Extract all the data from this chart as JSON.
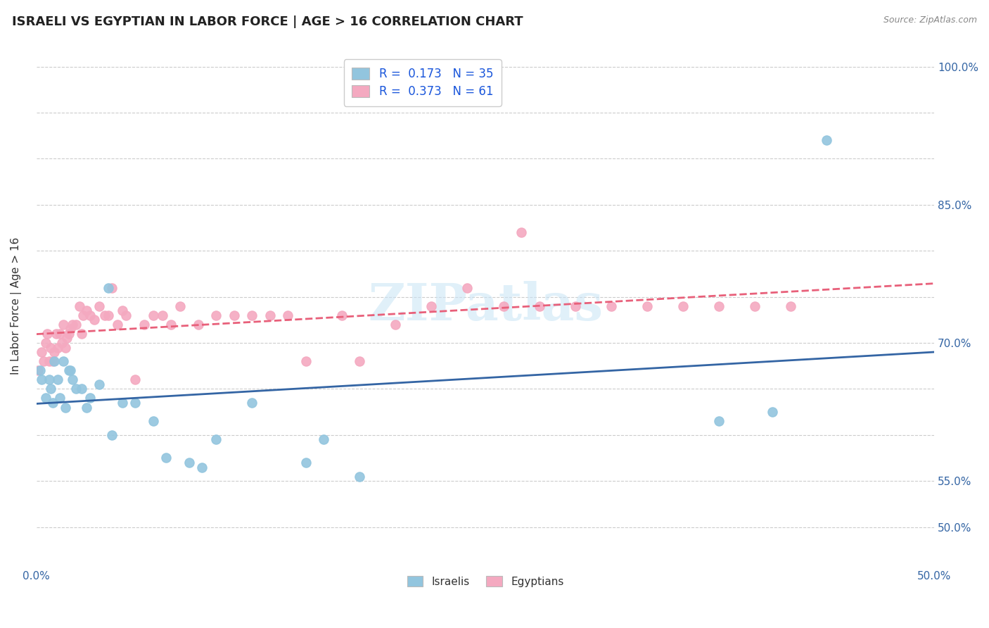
{
  "title": "ISRAELI VS EGYPTIAN IN LABOR FORCE | AGE > 16 CORRELATION CHART",
  "source": "Source: ZipAtlas.com",
  "ylabel": "In Labor Force | Age > 16",
  "xlim": [
    0.0,
    0.5
  ],
  "ylim": [
    0.46,
    1.02
  ],
  "yticks": [
    0.5,
    0.55,
    0.6,
    0.65,
    0.7,
    0.75,
    0.8,
    0.85,
    0.9,
    0.95,
    1.0
  ],
  "xticks": [
    0.0,
    0.05,
    0.1,
    0.15,
    0.2,
    0.25,
    0.3,
    0.35,
    0.4,
    0.45,
    0.5
  ],
  "israeli_color": "#92c5de",
  "egyptian_color": "#f4a9c0",
  "israeli_line_color": "#3465a4",
  "egyptian_line_color": "#e8607a",
  "legend_color": "#1a56db",
  "watermark": "ZIPatlas",
  "israeli_R": 0.173,
  "israeli_N": 35,
  "egyptian_R": 0.373,
  "egyptian_N": 61,
  "israeli_x": [
    0.002,
    0.003,
    0.005,
    0.007,
    0.008,
    0.009,
    0.01,
    0.012,
    0.013,
    0.015,
    0.016,
    0.018,
    0.019,
    0.02,
    0.022,
    0.025,
    0.028,
    0.03,
    0.035,
    0.04,
    0.042,
    0.048,
    0.055,
    0.065,
    0.072,
    0.085,
    0.092,
    0.1,
    0.12,
    0.15,
    0.16,
    0.18,
    0.38,
    0.41,
    0.44
  ],
  "israeli_y": [
    0.67,
    0.66,
    0.64,
    0.66,
    0.65,
    0.635,
    0.68,
    0.66,
    0.64,
    0.68,
    0.63,
    0.67,
    0.67,
    0.66,
    0.65,
    0.65,
    0.63,
    0.64,
    0.655,
    0.76,
    0.6,
    0.635,
    0.635,
    0.615,
    0.575,
    0.57,
    0.565,
    0.595,
    0.635,
    0.57,
    0.595,
    0.555,
    0.615,
    0.625,
    0.92
  ],
  "egyptian_x": [
    0.001,
    0.003,
    0.004,
    0.005,
    0.006,
    0.007,
    0.008,
    0.009,
    0.01,
    0.011,
    0.012,
    0.013,
    0.014,
    0.015,
    0.016,
    0.017,
    0.018,
    0.019,
    0.02,
    0.022,
    0.024,
    0.025,
    0.026,
    0.028,
    0.03,
    0.032,
    0.035,
    0.038,
    0.04,
    0.042,
    0.045,
    0.048,
    0.05,
    0.055,
    0.06,
    0.065,
    0.07,
    0.075,
    0.08,
    0.09,
    0.1,
    0.11,
    0.12,
    0.13,
    0.14,
    0.15,
    0.17,
    0.18,
    0.2,
    0.22,
    0.24,
    0.26,
    0.28,
    0.3,
    0.32,
    0.34,
    0.36,
    0.38,
    0.4,
    0.42,
    0.27
  ],
  "egyptian_y": [
    0.67,
    0.69,
    0.68,
    0.7,
    0.71,
    0.68,
    0.695,
    0.68,
    0.69,
    0.71,
    0.695,
    0.71,
    0.7,
    0.72,
    0.695,
    0.705,
    0.71,
    0.715,
    0.72,
    0.72,
    0.74,
    0.71,
    0.73,
    0.735,
    0.73,
    0.725,
    0.74,
    0.73,
    0.73,
    0.76,
    0.72,
    0.735,
    0.73,
    0.66,
    0.72,
    0.73,
    0.73,
    0.72,
    0.74,
    0.72,
    0.73,
    0.73,
    0.73,
    0.73,
    0.73,
    0.68,
    0.73,
    0.68,
    0.72,
    0.74,
    0.76,
    0.74,
    0.74,
    0.74,
    0.74,
    0.74,
    0.74,
    0.74,
    0.74,
    0.74,
    0.82
  ]
}
